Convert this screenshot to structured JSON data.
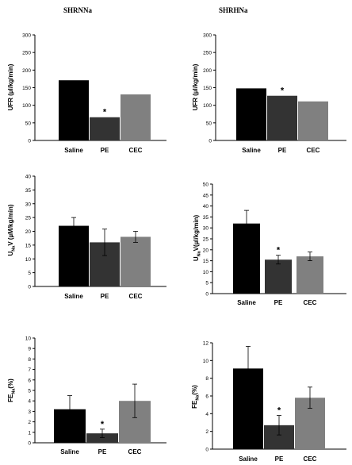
{
  "headers": {
    "left": "SHRNNa",
    "right": "SHRHNa"
  },
  "colors": {
    "saline": "#000000",
    "pe": "#333333",
    "cec": "#808080",
    "axis": "#000000",
    "error": "#000000"
  },
  "chart_data": [
    {
      "type": "bar",
      "column": "SHRNNa",
      "panel": "UFR",
      "categories": [
        "Saline",
        "PE",
        "CEC"
      ],
      "values": [
        171,
        66,
        131
      ],
      "errors": [
        0,
        0,
        0
      ],
      "significance": [
        "",
        "*",
        ""
      ],
      "ylabel_parts": [
        "UFR (µl/kg/min)"
      ],
      "ylim": [
        0,
        300
      ],
      "yticks": [
        0,
        50,
        100,
        150,
        200,
        250,
        300
      ],
      "grid": false,
      "legend": "none"
    },
    {
      "type": "bar",
      "column": "SHRHNa",
      "panel": "UFR",
      "categories": [
        "Saline",
        "PE",
        "CEC"
      ],
      "values": [
        148,
        127,
        111
      ],
      "errors": [
        0,
        0,
        0
      ],
      "significance": [
        "",
        "*",
        ""
      ],
      "ylabel_parts": [
        "UFR (µl/kg/min)"
      ],
      "ylim": [
        0,
        300
      ],
      "yticks": [
        0,
        50,
        100,
        150,
        200,
        250,
        300
      ],
      "grid": false,
      "legend": "none"
    },
    {
      "type": "bar",
      "column": "SHRNNa",
      "panel": "UNaV",
      "categories": [
        "Saline",
        "PE",
        "CEC"
      ],
      "values": [
        22,
        16,
        18
      ],
      "errors": [
        3,
        4.8,
        2
      ],
      "significance": [
        "",
        "",
        ""
      ],
      "ylabel_parts": [
        "U",
        "Na",
        "V (µM/kg/min)"
      ],
      "ylim": [
        0,
        40
      ],
      "yticks": [
        0,
        5,
        10,
        15,
        20,
        25,
        30,
        35,
        40
      ],
      "grid": false,
      "legend": "none"
    },
    {
      "type": "bar",
      "column": "SHRHNa",
      "panel": "UNaV",
      "categories": [
        "Saline",
        "PE",
        "CEC"
      ],
      "values": [
        32,
        15.5,
        17
      ],
      "errors": [
        6,
        2,
        2
      ],
      "significance": [
        "",
        "*",
        ""
      ],
      "ylabel_parts": [
        "U",
        "Na",
        "V(µl/kg/min)"
      ],
      "ylim": [
        0,
        50
      ],
      "yticks": [
        0,
        5,
        10,
        15,
        20,
        25,
        30,
        35,
        40,
        45,
        50
      ],
      "grid": false,
      "legend": "none"
    },
    {
      "type": "bar",
      "column": "SHRNNa",
      "panel": "FENa",
      "categories": [
        "Saline",
        "PE",
        "CEC"
      ],
      "values": [
        3.2,
        0.9,
        4.0
      ],
      "errors": [
        1.3,
        0.4,
        1.6
      ],
      "significance": [
        "",
        "*",
        ""
      ],
      "ylabel_parts": [
        "FE",
        "Na",
        "(%)"
      ],
      "ylim": [
        0,
        10
      ],
      "yticks": [
        0,
        1,
        2,
        3,
        4,
        5,
        6,
        7,
        8,
        9,
        10
      ],
      "grid": false,
      "legend": "none"
    },
    {
      "type": "bar",
      "column": "SHRHNa",
      "panel": "FENa",
      "categories": [
        "Saline",
        "PE",
        "CEC"
      ],
      "values": [
        9.1,
        2.7,
        5.8
      ],
      "errors": [
        2.5,
        1.1,
        1.2
      ],
      "significance": [
        "",
        "*",
        ""
      ],
      "ylabel_parts": [
        "FE",
        "Na",
        "(%)"
      ],
      "ylim": [
        0,
        12
      ],
      "yticks": [
        0,
        2,
        4,
        6,
        8,
        10,
        12
      ],
      "grid": false,
      "legend": "none"
    }
  ]
}
